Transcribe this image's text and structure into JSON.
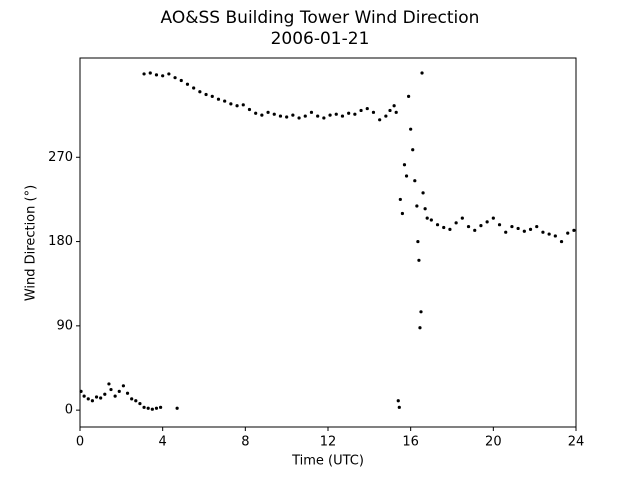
{
  "chart_data": {
    "type": "scatter",
    "title": "AO&SS Building Tower Wind Direction",
    "subtitle": "2006-01-21",
    "x_label": "Time (UTC)",
    "y_label": "Wind Direction (°)",
    "color": "#000000",
    "grid": false,
    "xlim": [
      0,
      24
    ],
    "ylim": [
      -18,
      376
    ],
    "xticks": [
      0,
      4,
      8,
      12,
      16,
      20,
      24
    ],
    "yticks": [
      0,
      90,
      180,
      270
    ],
    "x": [
      0.05,
      0.2,
      0.4,
      0.6,
      0.8,
      1.0,
      1.2,
      1.4,
      1.5,
      1.7,
      1.9,
      2.1,
      2.3,
      2.5,
      2.7,
      2.9,
      3.1,
      3.3,
      3.5,
      3.7,
      3.9,
      4.7,
      3.1,
      3.4,
      3.7,
      4.0,
      4.3,
      4.6,
      4.9,
      5.2,
      5.5,
      5.8,
      6.1,
      6.4,
      6.7,
      7.0,
      7.3,
      7.6,
      7.9,
      8.2,
      8.5,
      8.8,
      9.1,
      9.4,
      9.7,
      10.0,
      10.3,
      10.6,
      10.9,
      11.2,
      11.5,
      11.8,
      12.1,
      12.4,
      12.7,
      13.0,
      13.3,
      13.6,
      13.9,
      14.2,
      14.5,
      14.8,
      15.0,
      15.2,
      15.3,
      15.4,
      15.45,
      15.5,
      15.6,
      15.7,
      15.8,
      15.9,
      16.0,
      16.1,
      16.2,
      16.3,
      16.35,
      16.4,
      16.45,
      16.5,
      16.55,
      16.6,
      16.7,
      16.8,
      17.0,
      17.3,
      17.6,
      17.9,
      18.2,
      18.5,
      18.8,
      19.1,
      19.4,
      19.7,
      20.0,
      20.3,
      20.6,
      20.9,
      21.2,
      21.5,
      21.8,
      22.1,
      22.4,
      22.7,
      23.0,
      23.3,
      23.6,
      23.9
    ],
    "values": [
      20,
      15,
      12,
      10,
      14,
      13,
      17,
      28,
      22,
      15,
      20,
      26,
      18,
      12,
      10,
      7,
      3,
      2,
      1,
      2,
      3,
      2,
      359,
      360,
      358,
      357,
      359,
      355,
      352,
      348,
      344,
      340,
      337,
      335,
      332,
      330,
      327,
      325,
      326,
      321,
      317,
      315,
      318,
      316,
      314,
      313,
      315,
      312,
      314,
      318,
      314,
      312,
      315,
      316,
      314,
      317,
      316,
      320,
      322,
      318,
      310,
      314,
      320,
      325,
      318,
      10,
      3,
      225,
      210,
      262,
      250,
      335,
      300,
      278,
      245,
      218,
      180,
      160,
      88,
      105,
      360,
      232,
      215,
      205,
      203,
      198,
      195,
      193,
      200,
      205,
      196,
      192,
      197,
      201,
      205,
      198,
      190,
      196,
      194,
      191,
      193,
      196,
      190,
      188,
      186,
      180,
      189,
      192
    ]
  }
}
